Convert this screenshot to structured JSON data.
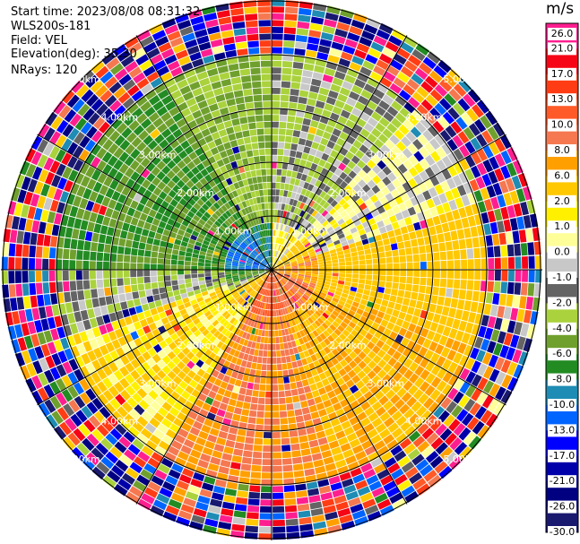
{
  "header": {
    "start_time": "Start time: 2023/08/08 08:31:32",
    "instrument": "WLS200s-181",
    "field": "Field: VEL",
    "elevation": "Elevation(deg): 35.30",
    "nrays": "NRays: 120"
  },
  "colorbar": {
    "unit": "m/s",
    "ticks": [
      "26.0",
      "21.0",
      "17.0",
      "13.0",
      "10.0",
      "8.0",
      "6.0",
      "2.0",
      "1.0",
      "0.0",
      "-1.0",
      "-2.0",
      "-4.0",
      "-6.0",
      "-8.0",
      "-10.0",
      "-13.0",
      "-17.0",
      "-21.0",
      "-26.0",
      "-30.0"
    ],
    "colors": [
      "#ff1e90",
      "#f50515",
      "#ff3c14",
      "#ff5a28",
      "#f57850",
      "#ffa000",
      "#ffc800",
      "#fff000",
      "#ffff9a",
      "#c8c8c8",
      "#646464",
      "#aad23c",
      "#6fa02d",
      "#228b22",
      "#1e8cb4",
      "#0064ff",
      "#0000ff",
      "#0000aa",
      "#000080",
      "#191970"
    ]
  },
  "chart_data": {
    "type": "heatmap",
    "projection": "PPI polar scan",
    "field": "VEL",
    "units": "m/s",
    "n_rays": 120,
    "range_km": [
      0,
      5.0
    ],
    "range_ring_labels": [
      "1.00km",
      "2.00km",
      "3.00km",
      "4.00km",
      "5.00km"
    ],
    "sector_summary": [
      {
        "azimuth_deg": [
          270,
          330
        ],
        "velocity_ms": -6.0,
        "note": "dark green, approaching"
      },
      {
        "azimuth_deg": [
          330,
          360
        ],
        "velocity_ms": -4.0
      },
      {
        "azimuth_deg": [
          0,
          40
        ],
        "velocity_ms": -2.0
      },
      {
        "azimuth_deg": [
          40,
          70
        ],
        "velocity_ms": 0.0
      },
      {
        "azimuth_deg": [
          70,
          110
        ],
        "velocity_ms": 4.0,
        "note": "yellow/orange, receding"
      },
      {
        "azimuth_deg": [
          110,
          160
        ],
        "velocity_ms": 6.0
      },
      {
        "azimuth_deg": [
          160,
          210
        ],
        "velocity_ms": 8.0,
        "note": "salmon core"
      },
      {
        "azimuth_deg": [
          210,
          250
        ],
        "velocity_ms": 2.0
      },
      {
        "azimuth_deg": [
          250,
          270
        ],
        "velocity_ms": -2.0
      }
    ],
    "noise_beyond_km": 4.0,
    "grid": true
  }
}
